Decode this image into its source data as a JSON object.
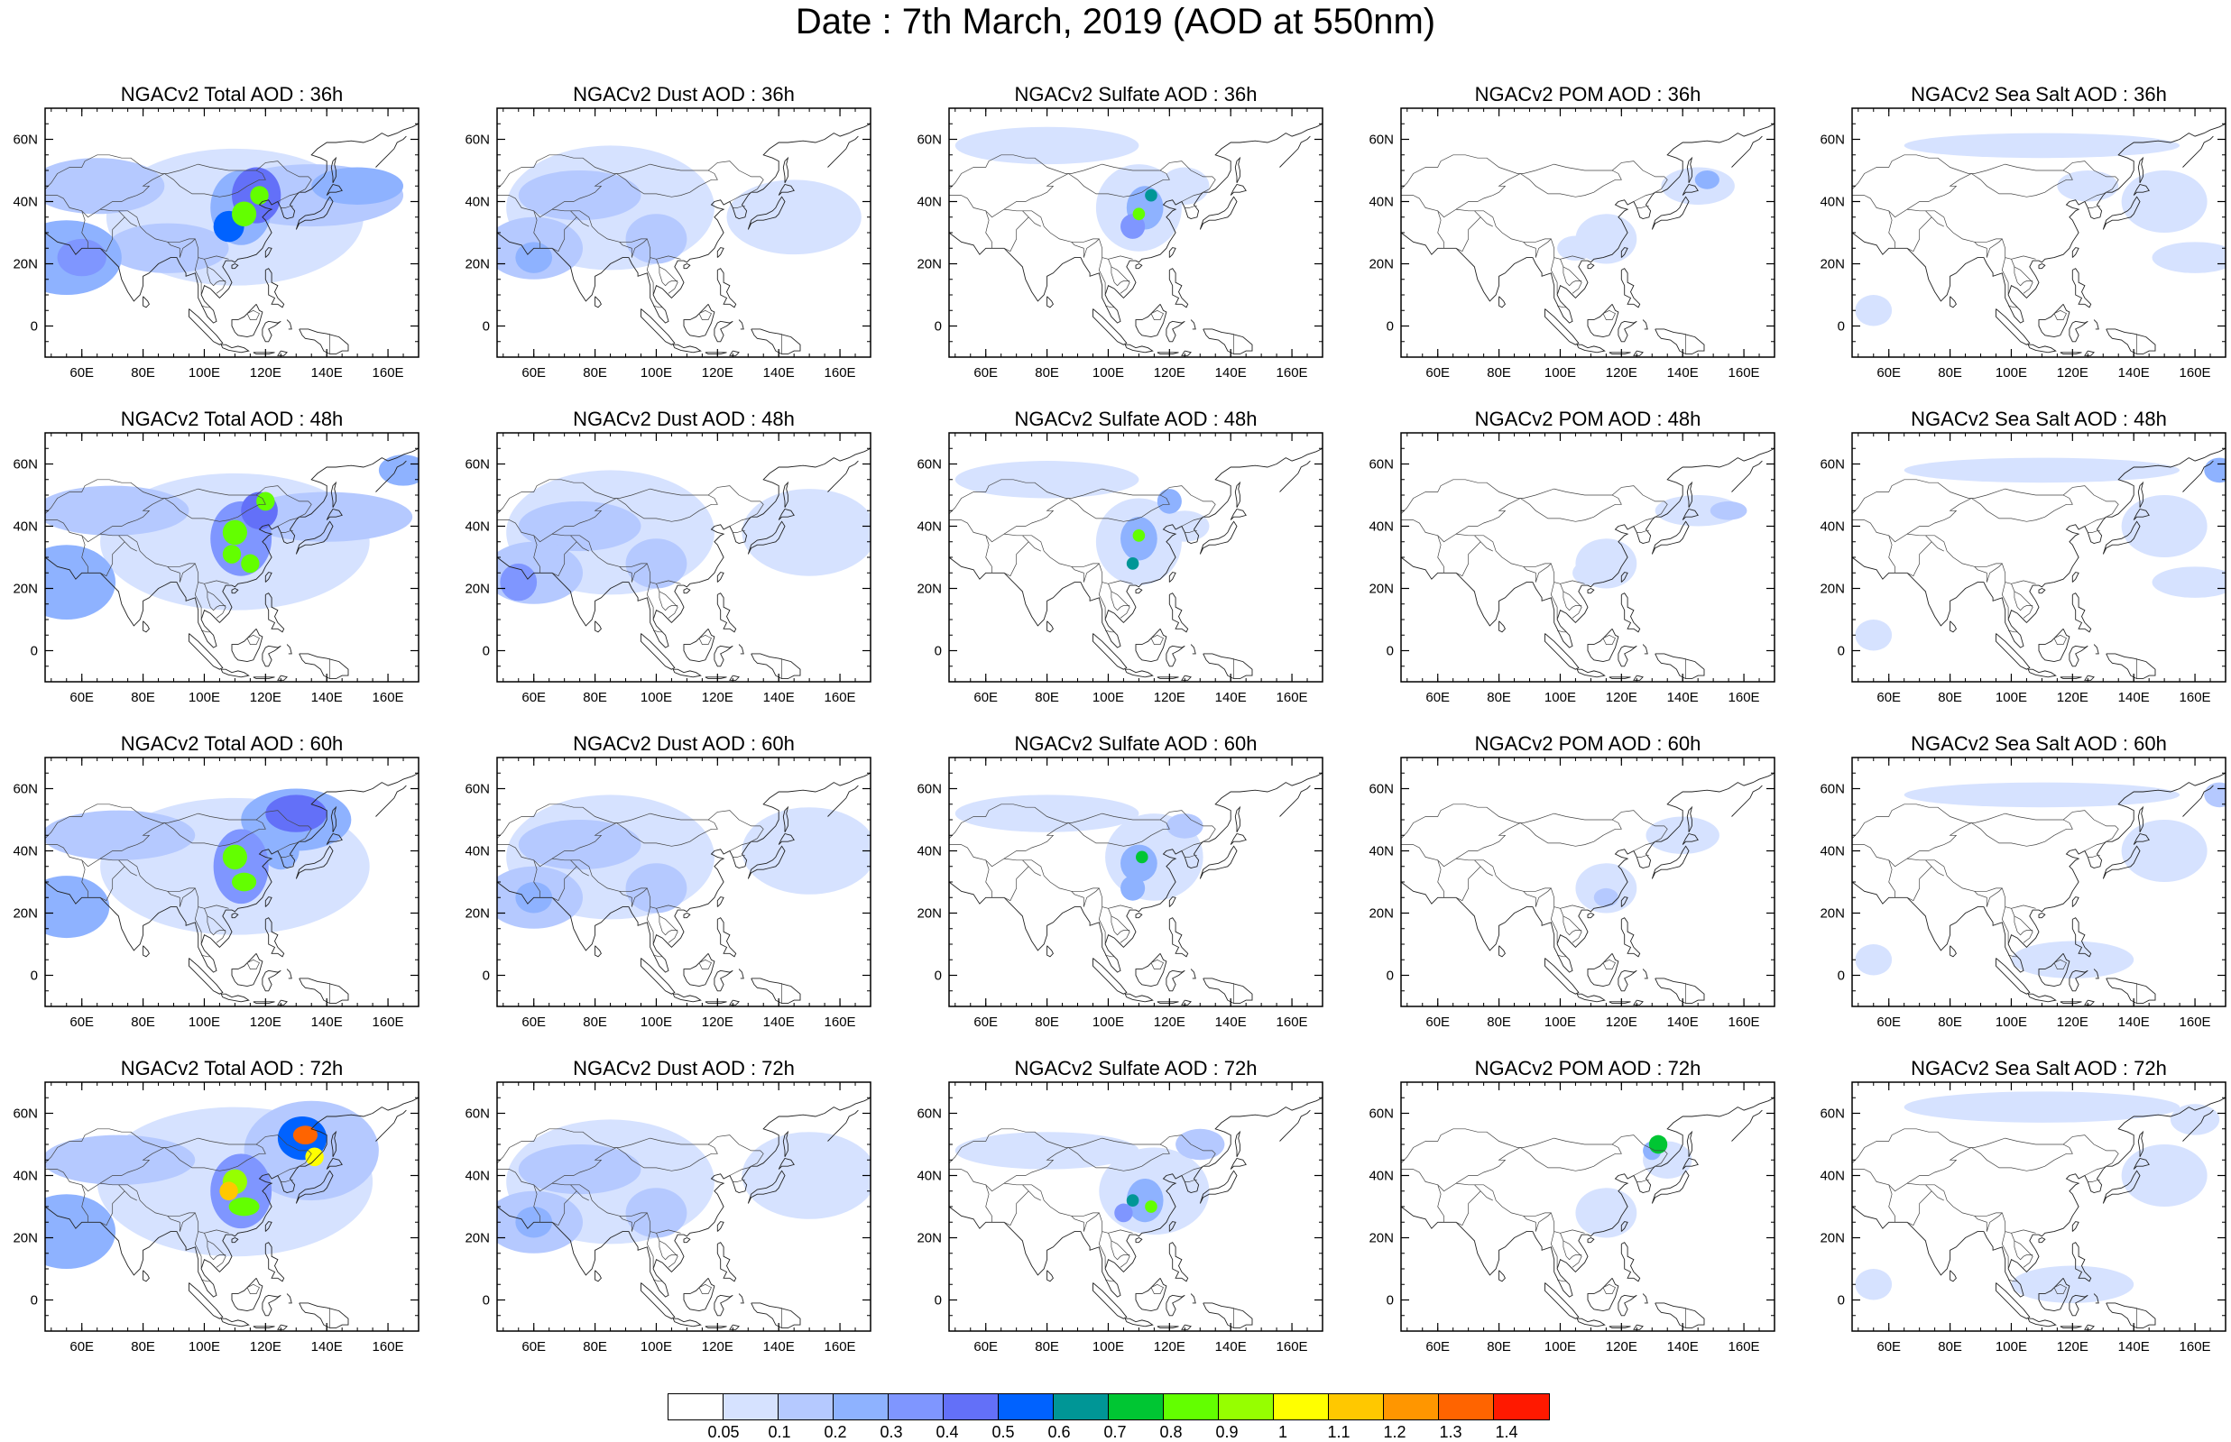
{
  "title": "Date : 7th March, 2019 (AOD at 550nm)",
  "map": {
    "lon_range": [
      48,
      170
    ],
    "lat_range": [
      -10,
      70
    ],
    "lon_ticks": [
      "60E",
      "80E",
      "100E",
      "120E",
      "140E",
      "160E"
    ],
    "lat_ticks": [
      "60N",
      "40N",
      "20N",
      "0"
    ]
  },
  "rows": [
    {
      "forecast_hour": "36h",
      "panels": [
        {
          "title": "NGACv2 Total AOD : 36h",
          "species": "total"
        },
        {
          "title": "NGACv2 Dust AOD : 36h",
          "species": "dust"
        },
        {
          "title": "NGACv2 Sulfate AOD : 36h",
          "species": "sulfate"
        },
        {
          "title": "NGACv2 POM AOD : 36h",
          "species": "pom"
        },
        {
          "title": "NGACv2 Sea Salt AOD : 36h",
          "species": "seasalt"
        }
      ]
    },
    {
      "forecast_hour": "48h",
      "panels": [
        {
          "title": "NGACv2 Total AOD : 48h",
          "species": "total"
        },
        {
          "title": "NGACv2 Dust AOD : 48h",
          "species": "dust"
        },
        {
          "title": "NGACv2 Sulfate AOD : 48h",
          "species": "sulfate"
        },
        {
          "title": "NGACv2 POM AOD : 48h",
          "species": "pom"
        },
        {
          "title": "NGACv2 Sea Salt AOD : 48h",
          "species": "seasalt"
        }
      ]
    },
    {
      "forecast_hour": "60h",
      "panels": [
        {
          "title": "NGACv2 Total AOD : 60h",
          "species": "total"
        },
        {
          "title": "NGACv2 Dust AOD : 60h",
          "species": "dust"
        },
        {
          "title": "NGACv2 Sulfate AOD : 60h",
          "species": "sulfate"
        },
        {
          "title": "NGACv2 POM AOD : 60h",
          "species": "pom"
        },
        {
          "title": "NGACv2 Sea Salt AOD : 60h",
          "species": "seasalt"
        }
      ]
    },
    {
      "forecast_hour": "72h",
      "panels": [
        {
          "title": "NGACv2 Total AOD : 72h",
          "species": "total"
        },
        {
          "title": "NGACv2 Dust AOD : 72h",
          "species": "dust"
        },
        {
          "title": "NGACv2 Sulfate AOD : 72h",
          "species": "sulfate"
        },
        {
          "title": "NGACv2 POM AOD : 72h",
          "species": "pom"
        },
        {
          "title": "NGACv2 Sea Salt  AOD : 72h",
          "species": "seasalt"
        }
      ]
    }
  ],
  "colorbar": {
    "labels": [
      "0.05",
      "0.1",
      "0.2",
      "0.3",
      "0.4",
      "0.5",
      "0.6",
      "0.7",
      "0.8",
      "0.9",
      "1",
      "1.1",
      "1.2",
      "1.3",
      "1.4"
    ],
    "colors": [
      "#ffffff",
      "#d6e2ff",
      "#b5c9ff",
      "#8eb2ff",
      "#7f96ff",
      "#6370f8",
      "#0062ff",
      "#009696",
      "#00c633",
      "#63ff00",
      "#96ff00",
      "#ffff00",
      "#ffc800",
      "#ff9600",
      "#ff6400",
      "#ff1900"
    ]
  }
}
